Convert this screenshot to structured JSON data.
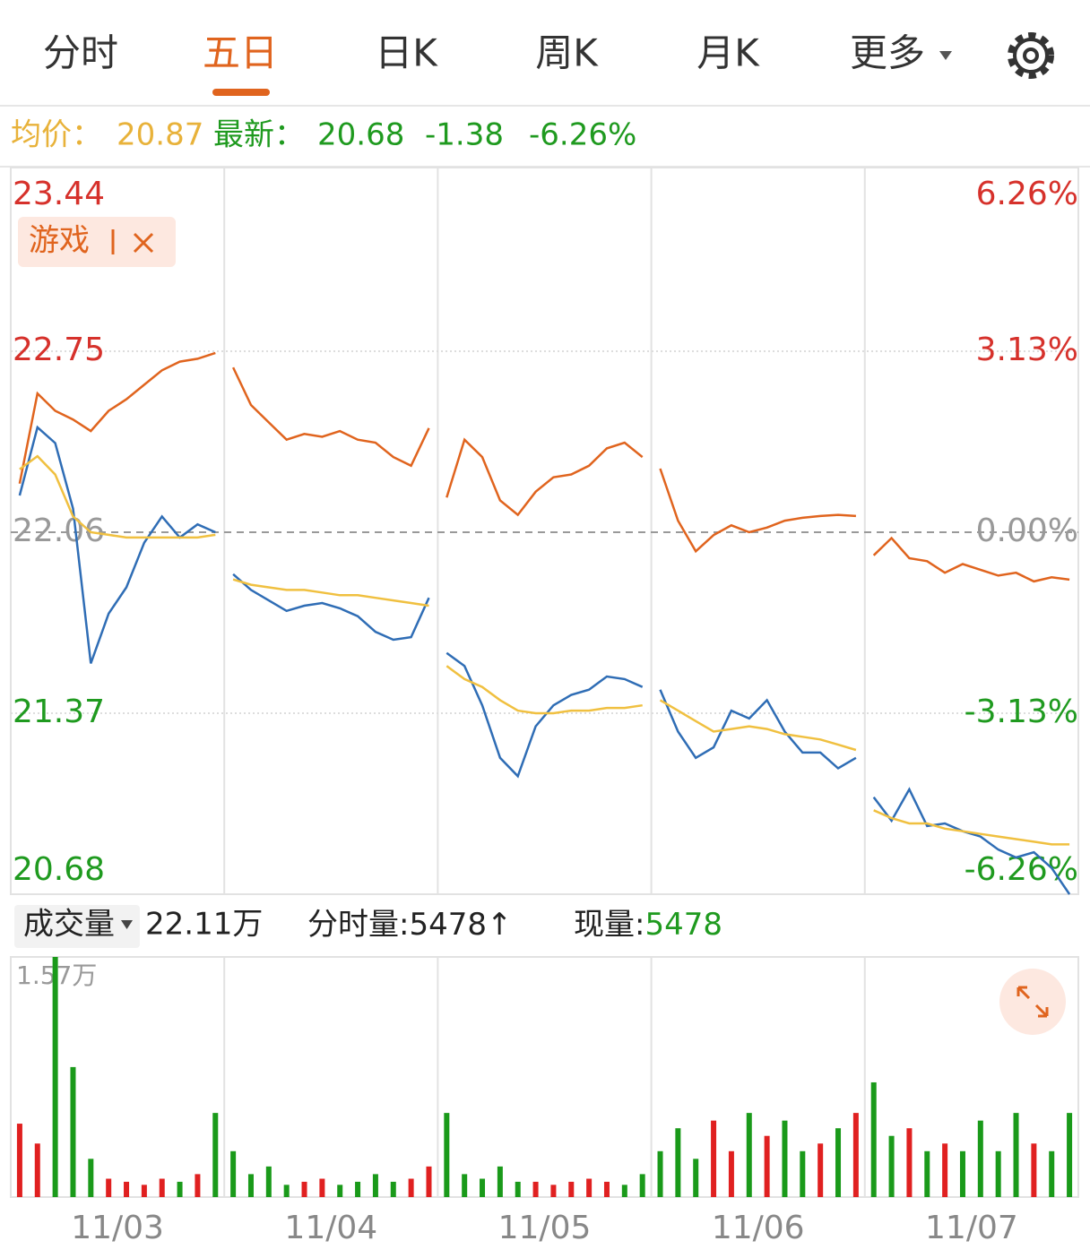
{
  "tabs": [
    "分时",
    "五日",
    "日K",
    "周K",
    "月K",
    "更多"
  ],
  "quote": {
    "avg_label": "均价：",
    "avg": 20.87,
    "last_label": "最新：",
    "last": 20.68,
    "change": -1.38,
    "change_pct": "-6.26%"
  },
  "volume_bar": {
    "selector": "成交量",
    "total": "22.11万",
    "tick_label": "分时量:",
    "tick_volume": 5478,
    "tick_arrow": "↑",
    "current_label": "现量:",
    "current": 5478
  },
  "chart_data": [
    {
      "type": "line",
      "ylim": [
        20.68,
        23.44
      ],
      "yticks": [
        20.68,
        21.37,
        22.06,
        22.75,
        23.44
      ],
      "y2lim": [
        -6.26,
        6.26
      ],
      "y2ticks": [
        {
          "value": -6.26,
          "label": "-6.26%"
        },
        {
          "value": -3.13,
          "label": "-3.13%"
        },
        {
          "value": 0,
          "label": "0.00%"
        },
        {
          "value": 3.13,
          "label": "3.13%"
        },
        {
          "value": 6.26,
          "label": "6.26%"
        }
      ],
      "grid": true,
      "series": [
        {
          "name": "游戏",
          "color": "#e0641e",
          "axis": "y2",
          "values": [
            [
              0.84,
              2.4,
              2.1,
              1.95,
              1.75,
              2.1,
              2.3,
              2.55,
              2.8,
              2.95,
              3.0,
              3.1
            ],
            [
              2.85,
              2.2,
              1.9,
              1.6,
              1.7,
              1.65,
              1.75,
              1.6,
              1.55,
              1.3,
              1.15,
              1.8
            ],
            [
              0.6,
              1.6,
              1.3,
              0.55,
              0.3,
              0.7,
              0.95,
              1.0,
              1.15,
              1.45,
              1.55,
              1.3
            ],
            [
              1.1,
              0.2,
              -0.33,
              -0.05,
              0.12,
              0.0,
              0.08,
              0.2,
              0.25,
              0.28,
              0.3,
              0.28
            ],
            [
              -0.4,
              -0.1,
              -0.45,
              -0.5,
              -0.7,
              -0.55,
              -0.65,
              -0.75,
              -0.7,
              -0.85,
              -0.78,
              -0.82
            ]
          ]
        },
        {
          "color": "#2f6db5",
          "values": [
            [
              22.2,
              22.46,
              22.4,
              22.15,
              21.56,
              21.75,
              21.85,
              22.02,
              22.12,
              22.04,
              22.09,
              22.06
            ],
            [
              21.9,
              21.84,
              21.8,
              21.76,
              21.78,
              21.79,
              21.77,
              21.74,
              21.68,
              21.65,
              21.66,
              21.81
            ],
            [
              21.6,
              21.55,
              21.4,
              21.2,
              21.13,
              21.32,
              21.4,
              21.44,
              21.46,
              21.51,
              21.5,
              21.47
            ],
            [
              21.46,
              21.3,
              21.2,
              21.24,
              21.38,
              21.35,
              21.42,
              21.3,
              21.22,
              21.22,
              21.16,
              21.2
            ],
            [
              21.05,
              20.96,
              21.08,
              20.94,
              20.95,
              20.92,
              20.9,
              20.85,
              20.82,
              20.84,
              20.78,
              20.68
            ]
          ]
        },
        {
          "color": "#f0c040",
          "values": [
            [
              22.3,
              22.35,
              22.28,
              22.12,
              22.06,
              22.05,
              22.04,
              22.04,
              22.04,
              22.04,
              22.04,
              22.05
            ],
            [
              21.88,
              21.86,
              21.85,
              21.84,
              21.84,
              21.83,
              21.82,
              21.82,
              21.81,
              21.8,
              21.79,
              21.78
            ],
            [
              21.55,
              21.5,
              21.47,
              21.42,
              21.38,
              21.37,
              21.37,
              21.38,
              21.38,
              21.39,
              21.39,
              21.4
            ],
            [
              21.42,
              21.38,
              21.34,
              21.3,
              21.31,
              21.32,
              21.31,
              21.29,
              21.28,
              21.27,
              21.25,
              21.23
            ],
            [
              21.0,
              20.97,
              20.95,
              20.95,
              20.93,
              20.92,
              20.91,
              20.9,
              20.89,
              20.88,
              20.87,
              20.87
            ]
          ]
        }
      ]
    },
    {
      "type": "bar",
      "categories": [
        "11/03",
        "11/04",
        "11/05",
        "11/06",
        "11/07"
      ],
      "ylim": [
        0,
        1.57
      ],
      "yticks": [
        {
          "value": 1.57,
          "label": "1.57万"
        }
      ],
      "up_color": "#e02020",
      "down_color": "#1a9a1a",
      "values": [
        [
          0.48,
          0.35,
          1.57,
          0.85,
          0.25,
          0.12,
          0.1,
          0.08,
          0.12,
          0.1,
          0.15,
          0.55
        ],
        [
          0.3,
          0.15,
          0.2,
          0.08,
          0.1,
          0.12,
          0.08,
          0.1,
          0.15,
          0.1,
          0.12,
          0.2
        ],
        [
          0.55,
          0.15,
          0.12,
          0.2,
          0.1,
          0.1,
          0.08,
          0.1,
          0.12,
          0.1,
          0.08,
          0.15
        ],
        [
          0.3,
          0.45,
          0.25,
          0.5,
          0.3,
          0.55,
          0.4,
          0.5,
          0.3,
          0.35,
          0.45,
          0.55
        ],
        [
          0.75,
          0.4,
          0.45,
          0.3,
          0.35,
          0.3,
          0.5,
          0.3,
          0.55,
          0.35,
          0.3,
          0.55
        ]
      ]
    }
  ]
}
